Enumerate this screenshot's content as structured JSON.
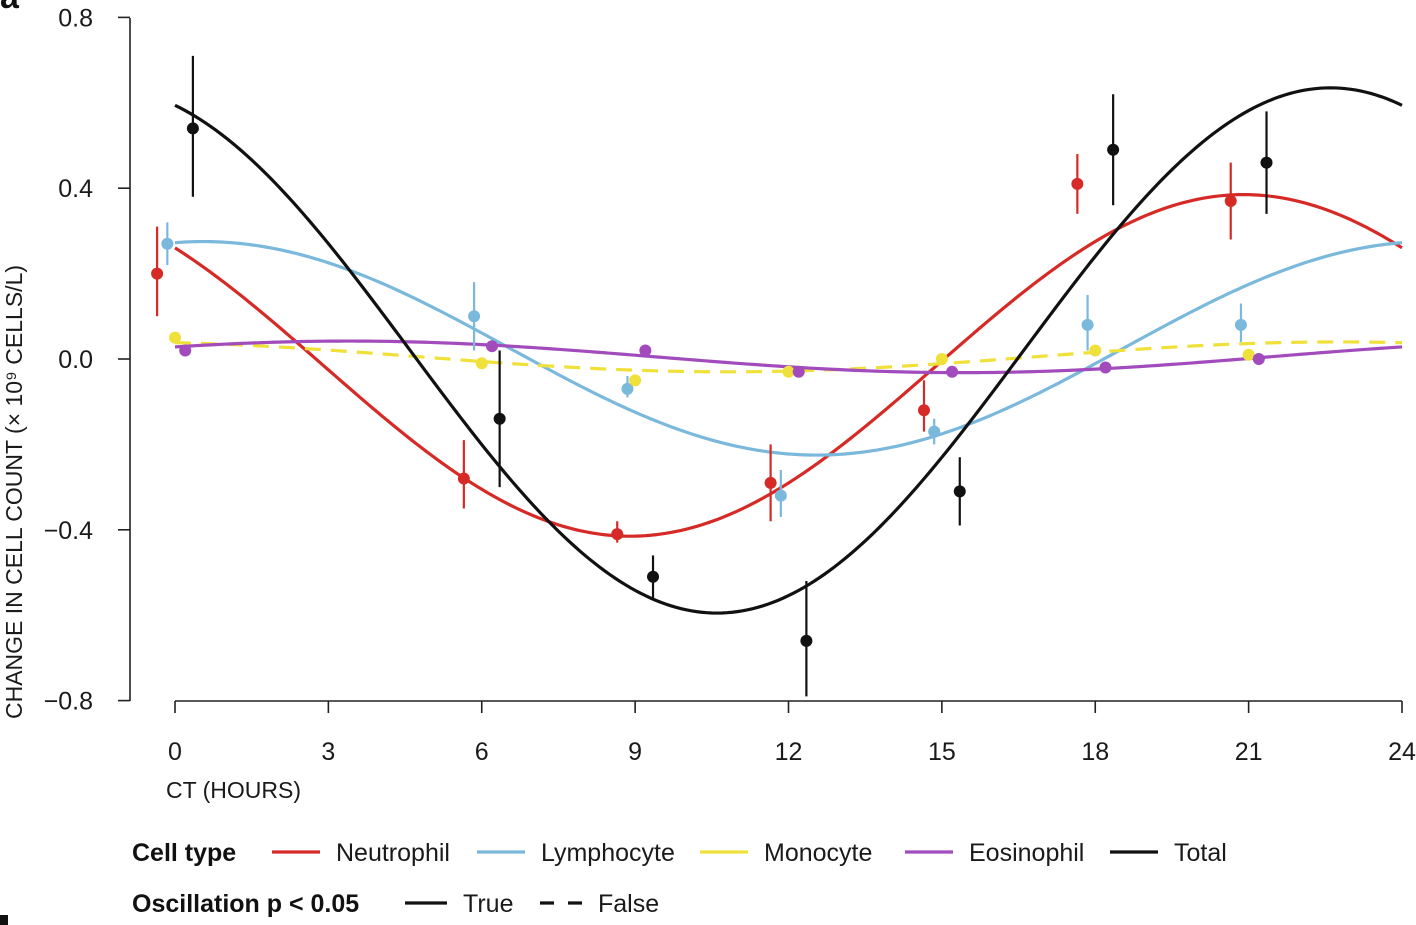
{
  "chart_data": {
    "type": "line",
    "panel_label": "a",
    "xlabel": "CT (HOURS)",
    "ylabel": "CHANGE IN CELL COUNT (× 10⁹ CELLS/L)",
    "xlim": [
      -1.5,
      24
    ],
    "ylim": [
      -0.8,
      0.8
    ],
    "xticks": [
      0,
      3,
      6,
      9,
      12,
      15,
      18,
      21,
      24
    ],
    "yticks": [
      0.8,
      0.4,
      0.0,
      -0.4,
      -0.8
    ],
    "xtick_labels": [
      "0",
      "3",
      "6",
      "9",
      "12",
      "15",
      "18",
      "21",
      "24"
    ],
    "ytick_labels": [
      "0.8",
      "0.4",
      "0.0",
      "−0.4",
      "−0.8"
    ],
    "grid": false,
    "legend_position": "bottom",
    "series": [
      {
        "name": "Neutrophil",
        "color": "#d62a27",
        "oscillation_significant": true,
        "fit": {
          "mesor": -0.015,
          "amplitude": 0.4,
          "peak_ct": 20.9
        },
        "points": [
          {
            "x": -0.35,
            "y": 0.2,
            "lo": 0.1,
            "hi": 0.31
          },
          {
            "x": 5.65,
            "y": -0.28,
            "lo": -0.35,
            "hi": -0.19
          },
          {
            "x": 8.65,
            "y": -0.41,
            "lo": -0.43,
            "hi": -0.38
          },
          {
            "x": 11.65,
            "y": -0.29,
            "lo": -0.38,
            "hi": -0.2
          },
          {
            "x": 14.65,
            "y": -0.12,
            "lo": -0.17,
            "hi": -0.05
          },
          {
            "x": 17.65,
            "y": 0.41,
            "lo": 0.34,
            "hi": 0.48
          },
          {
            "x": 20.65,
            "y": 0.37,
            "lo": 0.28,
            "hi": 0.46
          }
        ]
      },
      {
        "name": "Lymphocyte",
        "color": "#7ab8dc",
        "oscillation_significant": true,
        "fit": {
          "mesor": 0.025,
          "amplitude": 0.25,
          "peak_ct": 0.55
        },
        "points": [
          {
            "x": -0.15,
            "y": 0.27,
            "lo": 0.22,
            "hi": 0.32
          },
          {
            "x": 5.85,
            "y": 0.1,
            "lo": 0.02,
            "hi": 0.18
          },
          {
            "x": 8.85,
            "y": -0.07,
            "lo": -0.09,
            "hi": -0.04
          },
          {
            "x": 11.85,
            "y": -0.32,
            "lo": -0.37,
            "hi": -0.26
          },
          {
            "x": 14.85,
            "y": -0.17,
            "lo": -0.2,
            "hi": -0.14
          },
          {
            "x": 17.85,
            "y": 0.08,
            "lo": 0.02,
            "hi": 0.15
          },
          {
            "x": 20.85,
            "y": 0.08,
            "lo": 0.04,
            "hi": 0.13
          }
        ]
      },
      {
        "name": "Monocyte",
        "color": "#f0e03a",
        "oscillation_significant": false,
        "fit": {
          "mesor": 0.005,
          "amplitude": 0.035,
          "peak_ct": 22.8
        },
        "points": [
          {
            "x": 0.0,
            "y": 0.05,
            "lo": 0.04,
            "hi": 0.06
          },
          {
            "x": 6.0,
            "y": -0.01,
            "lo": -0.02,
            "hi": 0.0
          },
          {
            "x": 9.0,
            "y": -0.05,
            "lo": -0.06,
            "hi": -0.04
          },
          {
            "x": 12.0,
            "y": -0.03,
            "lo": -0.04,
            "hi": -0.02
          },
          {
            "x": 15.0,
            "y": 0.0,
            "lo": -0.01,
            "hi": 0.01
          },
          {
            "x": 18.0,
            "y": 0.02,
            "lo": 0.01,
            "hi": 0.03
          },
          {
            "x": 21.0,
            "y": 0.01,
            "lo": 0.0,
            "hi": 0.02
          }
        ]
      },
      {
        "name": "Eosinophil",
        "color": "#a24bbd",
        "oscillation_significant": true,
        "fit": {
          "mesor": 0.005,
          "amplitude": 0.037,
          "peak_ct": 3.4
        },
        "points": [
          {
            "x": 0.2,
            "y": 0.02,
            "lo": 0.01,
            "hi": 0.03
          },
          {
            "x": 6.2,
            "y": 0.03,
            "lo": 0.02,
            "hi": 0.04
          },
          {
            "x": 9.2,
            "y": 0.02,
            "lo": 0.01,
            "hi": 0.03
          },
          {
            "x": 12.2,
            "y": -0.03,
            "lo": -0.04,
            "hi": -0.02
          },
          {
            "x": 15.2,
            "y": -0.03,
            "lo": -0.04,
            "hi": -0.02
          },
          {
            "x": 18.2,
            "y": -0.02,
            "lo": -0.03,
            "hi": -0.01
          },
          {
            "x": 21.2,
            "y": 0.0,
            "lo": -0.01,
            "hi": 0.01
          }
        ]
      },
      {
        "name": "Total",
        "color": "#111111",
        "oscillation_significant": true,
        "fit": {
          "mesor": 0.02,
          "amplitude": 0.615,
          "peak_ct": 22.6
        },
        "points": [
          {
            "x": 0.35,
            "y": 0.54,
            "lo": 0.38,
            "hi": 0.71
          },
          {
            "x": 6.35,
            "y": -0.14,
            "lo": -0.3,
            "hi": 0.02
          },
          {
            "x": 9.35,
            "y": -0.51,
            "lo": -0.56,
            "hi": -0.46
          },
          {
            "x": 12.35,
            "y": -0.66,
            "lo": -0.79,
            "hi": -0.52
          },
          {
            "x": 15.35,
            "y": -0.31,
            "lo": -0.39,
            "hi": -0.23
          },
          {
            "x": 18.35,
            "y": 0.49,
            "lo": 0.36,
            "hi": 0.62
          },
          {
            "x": 21.35,
            "y": 0.46,
            "lo": 0.34,
            "hi": 0.58
          }
        ]
      }
    ],
    "legend": {
      "cell_type_title": "Cell type",
      "oscillation_title": "Oscillation p < 0.05",
      "oscillation_entries": [
        {
          "label": "True",
          "dashed": false
        },
        {
          "label": "False",
          "dashed": true
        }
      ]
    }
  }
}
